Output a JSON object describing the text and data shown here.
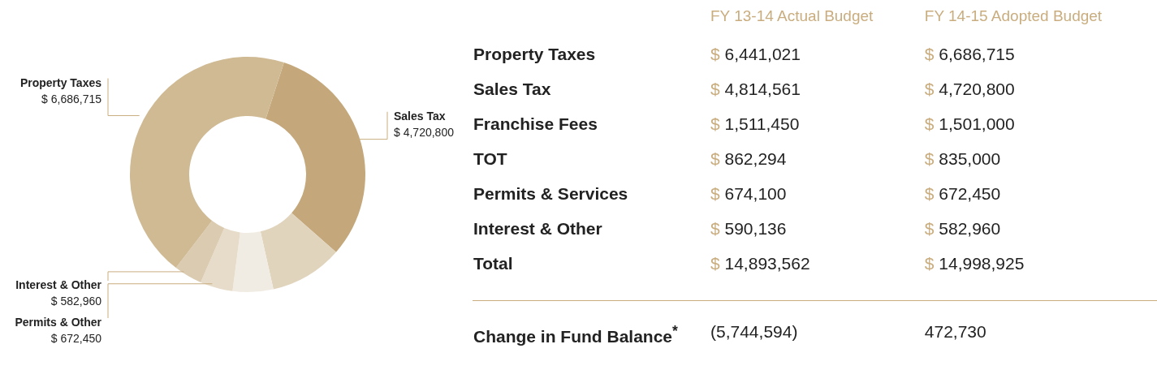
{
  "chart_data": [
    {
      "type": "donut",
      "categories": [
        "Sales Tax",
        null,
        null,
        "Permits & Other",
        "Interest & Other",
        "Property Taxes"
      ],
      "values": [
        4720800,
        1501000,
        835000,
        672450,
        582960,
        6686715
      ],
      "colors": [
        "#c4a87b",
        "#e1d4bd",
        "#f1ece3",
        "#e6dcc9",
        "#dbcbb0",
        "#cfba94"
      ],
      "value_labels": [
        "$ 4,720,800",
        null,
        null,
        "$ 672,450",
        "$ 582,960",
        "$ 6,686,715"
      ]
    },
    {
      "type": "other",
      "categories": [
        "Property Taxes",
        "Sales Tax",
        "Franchise Fees",
        "TOT",
        "Permits & Services",
        "Interest & Other",
        "Total",
        "Change in Fund Balance$^{*}$"
      ],
      "series": [
        {
          "name": "FY 13-14 Actual Budget",
          "values": [
            6441021,
            4814561,
            1511450,
            862294,
            674100,
            590136,
            14893562,
            -5744594
          ],
          "value_labels": [
            "$ 6,441,021",
            "$ 4,814,561",
            "$ 1,511,450",
            "$ 862,294",
            "$ 674,100",
            "$ 590,136",
            "$ 14,893,562",
            "(5,744,594)"
          ]
        },
        {
          "name": "FY 14-15 Adopted Budget",
          "values": [
            6686715,
            4720800,
            1501000,
            835000,
            672450,
            582960,
            14998925,
            472730
          ],
          "value_labels": [
            "$ 6,686,715",
            "$ 4,720,800",
            "$ 1,501,000",
            "$ 835,000",
            "$ 672,450",
            "$ 582,960",
            "$ 14,998,925",
            "472,730"
          ]
        }
      ]
    }
  ]
}
